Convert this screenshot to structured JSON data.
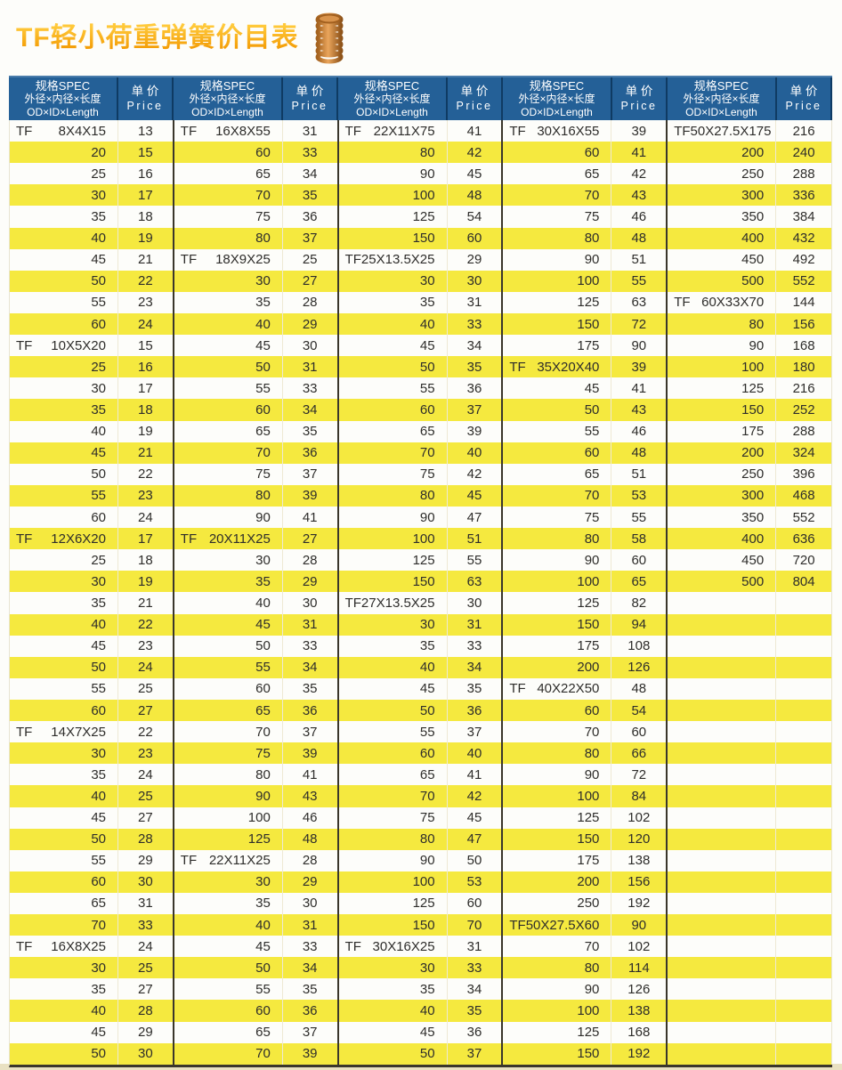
{
  "title": "TF轻小荷重弹簧价目表",
  "icons": {
    "spring": "coil-spring-icon"
  },
  "colors": {
    "header_blue": "#246097",
    "header_border": "#0F3B63",
    "row_yellow": "#F5E93F",
    "row_white": "#FFFFFF",
    "title_orange": "#F7A114",
    "spring_orange": "#C97C2F",
    "grid_dark": "#3A362B"
  },
  "table": {
    "spec_header": [
      "规格SPEC",
      "外径×内径×长度",
      "OD×ID×Length"
    ],
    "price_header": [
      "单 价",
      "Price"
    ],
    "columns": [
      {
        "rows": [
          [
            "TF",
            "8X4X15",
            "13"
          ],
          [
            "",
            "20",
            "15"
          ],
          [
            "",
            "25",
            "16"
          ],
          [
            "",
            "30",
            "17"
          ],
          [
            "",
            "35",
            "18"
          ],
          [
            "",
            "40",
            "19"
          ],
          [
            "",
            "45",
            "21"
          ],
          [
            "",
            "50",
            "22"
          ],
          [
            "",
            "55",
            "23"
          ],
          [
            "",
            "60",
            "24"
          ],
          [
            "TF",
            "10X5X20",
            "15"
          ],
          [
            "",
            "25",
            "16"
          ],
          [
            "",
            "30",
            "17"
          ],
          [
            "",
            "35",
            "18"
          ],
          [
            "",
            "40",
            "19"
          ],
          [
            "",
            "45",
            "21"
          ],
          [
            "",
            "50",
            "22"
          ],
          [
            "",
            "55",
            "23"
          ],
          [
            "",
            "60",
            "24"
          ],
          [
            "TF",
            "12X6X20",
            "17"
          ],
          [
            "",
            "25",
            "18"
          ],
          [
            "",
            "30",
            "19"
          ],
          [
            "",
            "35",
            "21"
          ],
          [
            "",
            "40",
            "22"
          ],
          [
            "",
            "45",
            "23"
          ],
          [
            "",
            "50",
            "24"
          ],
          [
            "",
            "55",
            "25"
          ],
          [
            "",
            "60",
            "27"
          ],
          [
            "TF",
            "14X7X25",
            "22"
          ],
          [
            "",
            "30",
            "23"
          ],
          [
            "",
            "35",
            "24"
          ],
          [
            "",
            "40",
            "25"
          ],
          [
            "",
            "45",
            "27"
          ],
          [
            "",
            "50",
            "28"
          ],
          [
            "",
            "55",
            "29"
          ],
          [
            "",
            "60",
            "30"
          ],
          [
            "",
            "65",
            "31"
          ],
          [
            "",
            "70",
            "33"
          ],
          [
            "TF",
            "16X8X25",
            "24"
          ],
          [
            "",
            "30",
            "25"
          ],
          [
            "",
            "35",
            "27"
          ],
          [
            "",
            "40",
            "28"
          ],
          [
            "",
            "45",
            "29"
          ],
          [
            "",
            "50",
            "30"
          ]
        ]
      },
      {
        "rows": [
          [
            "TF",
            "16X8X55",
            "31"
          ],
          [
            "",
            "60",
            "33"
          ],
          [
            "",
            "65",
            "34"
          ],
          [
            "",
            "70",
            "35"
          ],
          [
            "",
            "75",
            "36"
          ],
          [
            "",
            "80",
            "37"
          ],
          [
            "TF",
            "18X9X25",
            "25"
          ],
          [
            "",
            "30",
            "27"
          ],
          [
            "",
            "35",
            "28"
          ],
          [
            "",
            "40",
            "29"
          ],
          [
            "",
            "45",
            "30"
          ],
          [
            "",
            "50",
            "31"
          ],
          [
            "",
            "55",
            "33"
          ],
          [
            "",
            "60",
            "34"
          ],
          [
            "",
            "65",
            "35"
          ],
          [
            "",
            "70",
            "36"
          ],
          [
            "",
            "75",
            "37"
          ],
          [
            "",
            "80",
            "39"
          ],
          [
            "",
            "90",
            "41"
          ],
          [
            "TF",
            "20X11X25",
            "27"
          ],
          [
            "",
            "30",
            "28"
          ],
          [
            "",
            "35",
            "29"
          ],
          [
            "",
            "40",
            "30"
          ],
          [
            "",
            "45",
            "31"
          ],
          [
            "",
            "50",
            "33"
          ],
          [
            "",
            "55",
            "34"
          ],
          [
            "",
            "60",
            "35"
          ],
          [
            "",
            "65",
            "36"
          ],
          [
            "",
            "70",
            "37"
          ],
          [
            "",
            "75",
            "39"
          ],
          [
            "",
            "80",
            "41"
          ],
          [
            "",
            "90",
            "43"
          ],
          [
            "",
            "100",
            "46"
          ],
          [
            "",
            "125",
            "48"
          ],
          [
            "TF",
            "22X11X25",
            "28"
          ],
          [
            "",
            "30",
            "29"
          ],
          [
            "",
            "35",
            "30"
          ],
          [
            "",
            "40",
            "31"
          ],
          [
            "",
            "45",
            "33"
          ],
          [
            "",
            "50",
            "34"
          ],
          [
            "",
            "55",
            "35"
          ],
          [
            "",
            "60",
            "36"
          ],
          [
            "",
            "65",
            "37"
          ],
          [
            "",
            "70",
            "39"
          ]
        ]
      },
      {
        "rows": [
          [
            "TF",
            "22X11X75",
            "41"
          ],
          [
            "",
            "80",
            "42"
          ],
          [
            "",
            "90",
            "45"
          ],
          [
            "",
            "100",
            "48"
          ],
          [
            "",
            "125",
            "54"
          ],
          [
            "",
            "150",
            "60"
          ],
          [
            "TF25X13.5X25",
            "",
            "29"
          ],
          [
            "",
            "30",
            "30"
          ],
          [
            "",
            "35",
            "31"
          ],
          [
            "",
            "40",
            "33"
          ],
          [
            "",
            "45",
            "34"
          ],
          [
            "",
            "50",
            "35"
          ],
          [
            "",
            "55",
            "36"
          ],
          [
            "",
            "60",
            "37"
          ],
          [
            "",
            "65",
            "39"
          ],
          [
            "",
            "70",
            "40"
          ],
          [
            "",
            "75",
            "42"
          ],
          [
            "",
            "80",
            "45"
          ],
          [
            "",
            "90",
            "47"
          ],
          [
            "",
            "100",
            "51"
          ],
          [
            "",
            "125",
            "55"
          ],
          [
            "",
            "150",
            "63"
          ],
          [
            "TF27X13.5X25",
            "",
            "30"
          ],
          [
            "",
            "30",
            "31"
          ],
          [
            "",
            "35",
            "33"
          ],
          [
            "",
            "40",
            "34"
          ],
          [
            "",
            "45",
            "35"
          ],
          [
            "",
            "50",
            "36"
          ],
          [
            "",
            "55",
            "37"
          ],
          [
            "",
            "60",
            "40"
          ],
          [
            "",
            "65",
            "41"
          ],
          [
            "",
            "70",
            "42"
          ],
          [
            "",
            "75",
            "45"
          ],
          [
            "",
            "80",
            "47"
          ],
          [
            "",
            "90",
            "50"
          ],
          [
            "",
            "100",
            "53"
          ],
          [
            "",
            "125",
            "60"
          ],
          [
            "",
            "150",
            "70"
          ],
          [
            "TF",
            "30X16X25",
            "31"
          ],
          [
            "",
            "30",
            "33"
          ],
          [
            "",
            "35",
            "34"
          ],
          [
            "",
            "40",
            "35"
          ],
          [
            "",
            "45",
            "36"
          ],
          [
            "",
            "50",
            "37"
          ]
        ]
      },
      {
        "rows": [
          [
            "TF",
            "30X16X55",
            "39"
          ],
          [
            "",
            "60",
            "41"
          ],
          [
            "",
            "65",
            "42"
          ],
          [
            "",
            "70",
            "43"
          ],
          [
            "",
            "75",
            "46"
          ],
          [
            "",
            "80",
            "48"
          ],
          [
            "",
            "90",
            "51"
          ],
          [
            "",
            "100",
            "55"
          ],
          [
            "",
            "125",
            "63"
          ],
          [
            "",
            "150",
            "72"
          ],
          [
            "",
            "175",
            "90"
          ],
          [
            "TF",
            "35X20X40",
            "39"
          ],
          [
            "",
            "45",
            "41"
          ],
          [
            "",
            "50",
            "43"
          ],
          [
            "",
            "55",
            "46"
          ],
          [
            "",
            "60",
            "48"
          ],
          [
            "",
            "65",
            "51"
          ],
          [
            "",
            "70",
            "53"
          ],
          [
            "",
            "75",
            "55"
          ],
          [
            "",
            "80",
            "58"
          ],
          [
            "",
            "90",
            "60"
          ],
          [
            "",
            "100",
            "65"
          ],
          [
            "",
            "125",
            "82"
          ],
          [
            "",
            "150",
            "94"
          ],
          [
            "",
            "175",
            "108"
          ],
          [
            "",
            "200",
            "126"
          ],
          [
            "TF",
            "40X22X50",
            "48"
          ],
          [
            "",
            "60",
            "54"
          ],
          [
            "",
            "70",
            "60"
          ],
          [
            "",
            "80",
            "66"
          ],
          [
            "",
            "90",
            "72"
          ],
          [
            "",
            "100",
            "84"
          ],
          [
            "",
            "125",
            "102"
          ],
          [
            "",
            "150",
            "120"
          ],
          [
            "",
            "175",
            "138"
          ],
          [
            "",
            "200",
            "156"
          ],
          [
            "",
            "250",
            "192"
          ],
          [
            "TF50X27.5X60",
            "",
            "90"
          ],
          [
            "",
            "70",
            "102"
          ],
          [
            "",
            "80",
            "114"
          ],
          [
            "",
            "90",
            "126"
          ],
          [
            "",
            "100",
            "138"
          ],
          [
            "",
            "125",
            "168"
          ],
          [
            "",
            "150",
            "192"
          ]
        ]
      },
      {
        "rows": [
          [
            "TF50X27.5X175",
            "",
            "216"
          ],
          [
            "",
            "200",
            "240"
          ],
          [
            "",
            "250",
            "288"
          ],
          [
            "",
            "300",
            "336"
          ],
          [
            "",
            "350",
            "384"
          ],
          [
            "",
            "400",
            "432"
          ],
          [
            "",
            "450",
            "492"
          ],
          [
            "",
            "500",
            "552"
          ],
          [
            "TF",
            "60X33X70",
            "144"
          ],
          [
            "",
            "80",
            "156"
          ],
          [
            "",
            "90",
            "168"
          ],
          [
            "",
            "100",
            "180"
          ],
          [
            "",
            "125",
            "216"
          ],
          [
            "",
            "150",
            "252"
          ],
          [
            "",
            "175",
            "288"
          ],
          [
            "",
            "200",
            "324"
          ],
          [
            "",
            "250",
            "396"
          ],
          [
            "",
            "300",
            "468"
          ],
          [
            "",
            "350",
            "552"
          ],
          [
            "",
            "400",
            "636"
          ],
          [
            "",
            "450",
            "720"
          ],
          [
            "",
            "500",
            "804"
          ],
          [
            "",
            "",
            ""
          ],
          [
            "",
            "",
            ""
          ],
          [
            "",
            "",
            ""
          ],
          [
            "",
            "",
            ""
          ],
          [
            "",
            "",
            ""
          ],
          [
            "",
            "",
            ""
          ],
          [
            "",
            "",
            ""
          ],
          [
            "",
            "",
            ""
          ],
          [
            "",
            "",
            ""
          ],
          [
            "",
            "",
            ""
          ],
          [
            "",
            "",
            ""
          ],
          [
            "",
            "",
            ""
          ],
          [
            "",
            "",
            ""
          ],
          [
            "",
            "",
            ""
          ],
          [
            "",
            "",
            ""
          ],
          [
            "",
            "",
            ""
          ],
          [
            "",
            "",
            ""
          ],
          [
            "",
            "",
            ""
          ],
          [
            "",
            "",
            ""
          ],
          [
            "",
            "",
            ""
          ],
          [
            "",
            "",
            ""
          ],
          [
            "",
            "",
            ""
          ]
        ]
      }
    ]
  }
}
